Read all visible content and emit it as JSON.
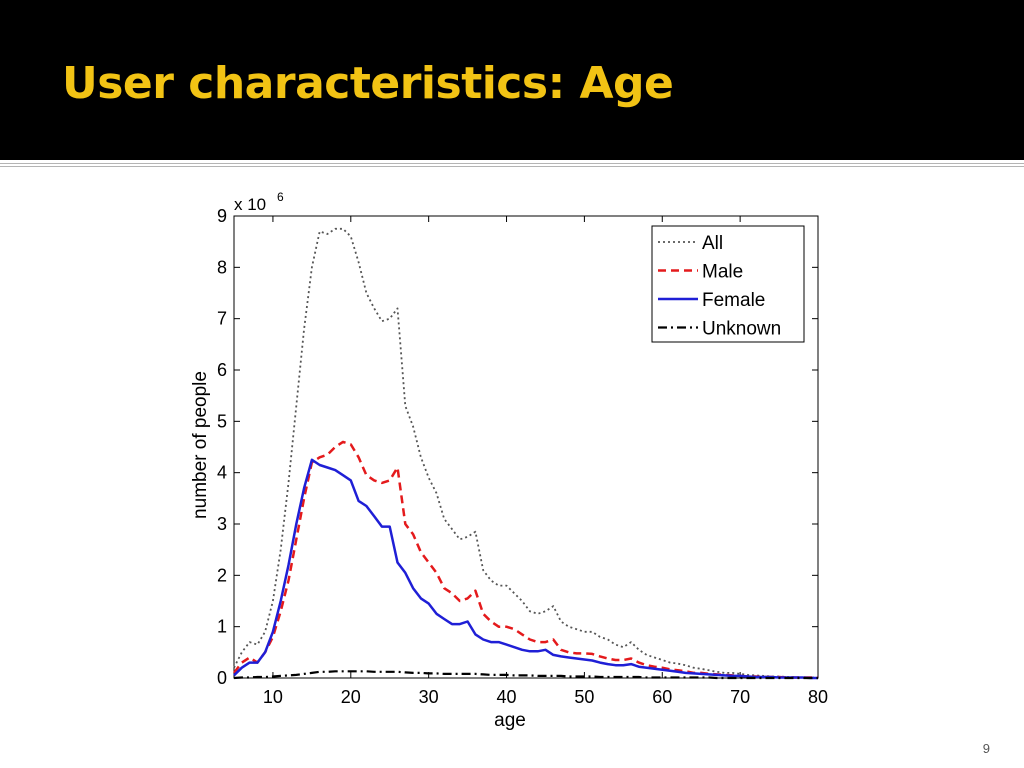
{
  "slide": {
    "title": "User characteristics: Age",
    "page_number": "9",
    "colors": {
      "title": "#f2c314",
      "header_background": "#000000"
    }
  },
  "chart_data": {
    "type": "line",
    "title": "",
    "xlabel": "age",
    "ylabel": "number of people",
    "y_multiplier": "x 10",
    "y_multiplier_exponent": "6",
    "xlim": [
      5,
      80
    ],
    "ylim": [
      0,
      9
    ],
    "xticks": [
      10,
      20,
      30,
      40,
      50,
      60,
      70,
      80
    ],
    "yticks": [
      0,
      1,
      2,
      3,
      4,
      5,
      6,
      7,
      8,
      9
    ],
    "grid": false,
    "legend_position": "top-right",
    "x": [
      5,
      6,
      7,
      8,
      9,
      10,
      11,
      12,
      13,
      14,
      15,
      16,
      17,
      18,
      19,
      20,
      21,
      22,
      23,
      24,
      25,
      26,
      27,
      28,
      29,
      30,
      31,
      32,
      33,
      34,
      35,
      36,
      37,
      38,
      39,
      40,
      41,
      42,
      43,
      44,
      45,
      46,
      47,
      48,
      49,
      50,
      51,
      52,
      53,
      54,
      55,
      56,
      57,
      58,
      59,
      60,
      61,
      62,
      63,
      64,
      65,
      66,
      67,
      68,
      69,
      70,
      71,
      72,
      73,
      74,
      75,
      76,
      77,
      78,
      79,
      80
    ],
    "series": [
      {
        "name": "All",
        "style": "dotted",
        "color": "#555555",
        "values": [
          0.2,
          0.5,
          0.7,
          0.65,
          0.9,
          1.5,
          2.5,
          3.8,
          5.3,
          6.8,
          8.0,
          8.7,
          8.65,
          8.75,
          8.75,
          8.6,
          8.1,
          7.5,
          7.2,
          6.95,
          7.0,
          7.2,
          5.3,
          4.9,
          4.3,
          3.9,
          3.6,
          3.1,
          2.9,
          2.7,
          2.75,
          2.85,
          2.1,
          1.9,
          1.8,
          1.8,
          1.65,
          1.5,
          1.3,
          1.25,
          1.3,
          1.4,
          1.1,
          1.0,
          0.95,
          0.9,
          0.9,
          0.8,
          0.75,
          0.65,
          0.6,
          0.7,
          0.55,
          0.45,
          0.4,
          0.35,
          0.3,
          0.28,
          0.25,
          0.2,
          0.18,
          0.15,
          0.12,
          0.1,
          0.1,
          0.08,
          0.06,
          0.05,
          0.04,
          0.03,
          0.03,
          0.02,
          0.02,
          0.01,
          0.01,
          0.01
        ]
      },
      {
        "name": "Male",
        "style": "dashed",
        "color": "#e41a1c",
        "values": [
          0.1,
          0.3,
          0.4,
          0.3,
          0.5,
          0.8,
          1.3,
          1.9,
          2.7,
          3.5,
          4.2,
          4.3,
          4.35,
          4.5,
          4.6,
          4.55,
          4.3,
          3.95,
          3.85,
          3.8,
          3.85,
          4.1,
          3.0,
          2.8,
          2.45,
          2.25,
          2.05,
          1.75,
          1.65,
          1.5,
          1.55,
          1.7,
          1.25,
          1.1,
          1.0,
          1.0,
          0.95,
          0.85,
          0.75,
          0.7,
          0.7,
          0.75,
          0.55,
          0.5,
          0.48,
          0.48,
          0.47,
          0.42,
          0.38,
          0.35,
          0.35,
          0.38,
          0.3,
          0.25,
          0.22,
          0.2,
          0.17,
          0.15,
          0.13,
          0.1,
          0.1,
          0.08,
          0.07,
          0.06,
          0.05,
          0.04,
          0.03,
          0.03,
          0.02,
          0.02,
          0.02,
          0.01,
          0.01,
          0.01,
          0.01,
          0.01
        ]
      },
      {
        "name": "Female",
        "style": "solid",
        "color": "#1f1fd6",
        "values": [
          0.05,
          0.2,
          0.3,
          0.3,
          0.5,
          0.9,
          1.5,
          2.2,
          3.0,
          3.7,
          4.25,
          4.15,
          4.1,
          4.05,
          3.95,
          3.85,
          3.45,
          3.35,
          3.15,
          2.95,
          2.95,
          2.25,
          2.05,
          1.75,
          1.55,
          1.45,
          1.25,
          1.15,
          1.05,
          1.05,
          1.1,
          0.85,
          0.75,
          0.7,
          0.7,
          0.65,
          0.6,
          0.55,
          0.52,
          0.52,
          0.55,
          0.45,
          0.42,
          0.4,
          0.38,
          0.36,
          0.34,
          0.3,
          0.27,
          0.25,
          0.25,
          0.27,
          0.22,
          0.2,
          0.18,
          0.16,
          0.14,
          0.12,
          0.1,
          0.09,
          0.08,
          0.07,
          0.06,
          0.05,
          0.04,
          0.04,
          0.03,
          0.02,
          0.02,
          0.02,
          0.01,
          0.01,
          0.01,
          0.01,
          0.0,
          0.0
        ]
      },
      {
        "name": "Unknown",
        "style": "dashdot",
        "color": "#000000",
        "values": [
          0.0,
          0.01,
          0.01,
          0.02,
          0.02,
          0.03,
          0.04,
          0.05,
          0.06,
          0.08,
          0.1,
          0.12,
          0.12,
          0.13,
          0.13,
          0.13,
          0.13,
          0.13,
          0.12,
          0.12,
          0.12,
          0.12,
          0.11,
          0.1,
          0.1,
          0.09,
          0.09,
          0.08,
          0.08,
          0.08,
          0.08,
          0.08,
          0.07,
          0.06,
          0.06,
          0.06,
          0.05,
          0.05,
          0.05,
          0.04,
          0.04,
          0.04,
          0.04,
          0.03,
          0.03,
          0.03,
          0.03,
          0.02,
          0.02,
          0.02,
          0.02,
          0.02,
          0.02,
          0.01,
          0.01,
          0.01,
          0.01,
          0.01,
          0.01,
          0.01,
          0.01,
          0.01,
          0.0,
          0.0,
          0.0,
          0.0,
          0.0,
          0.0,
          0.0,
          0.0,
          0.0,
          0.0,
          0.0,
          0.0,
          0.0,
          0.0
        ]
      }
    ]
  }
}
